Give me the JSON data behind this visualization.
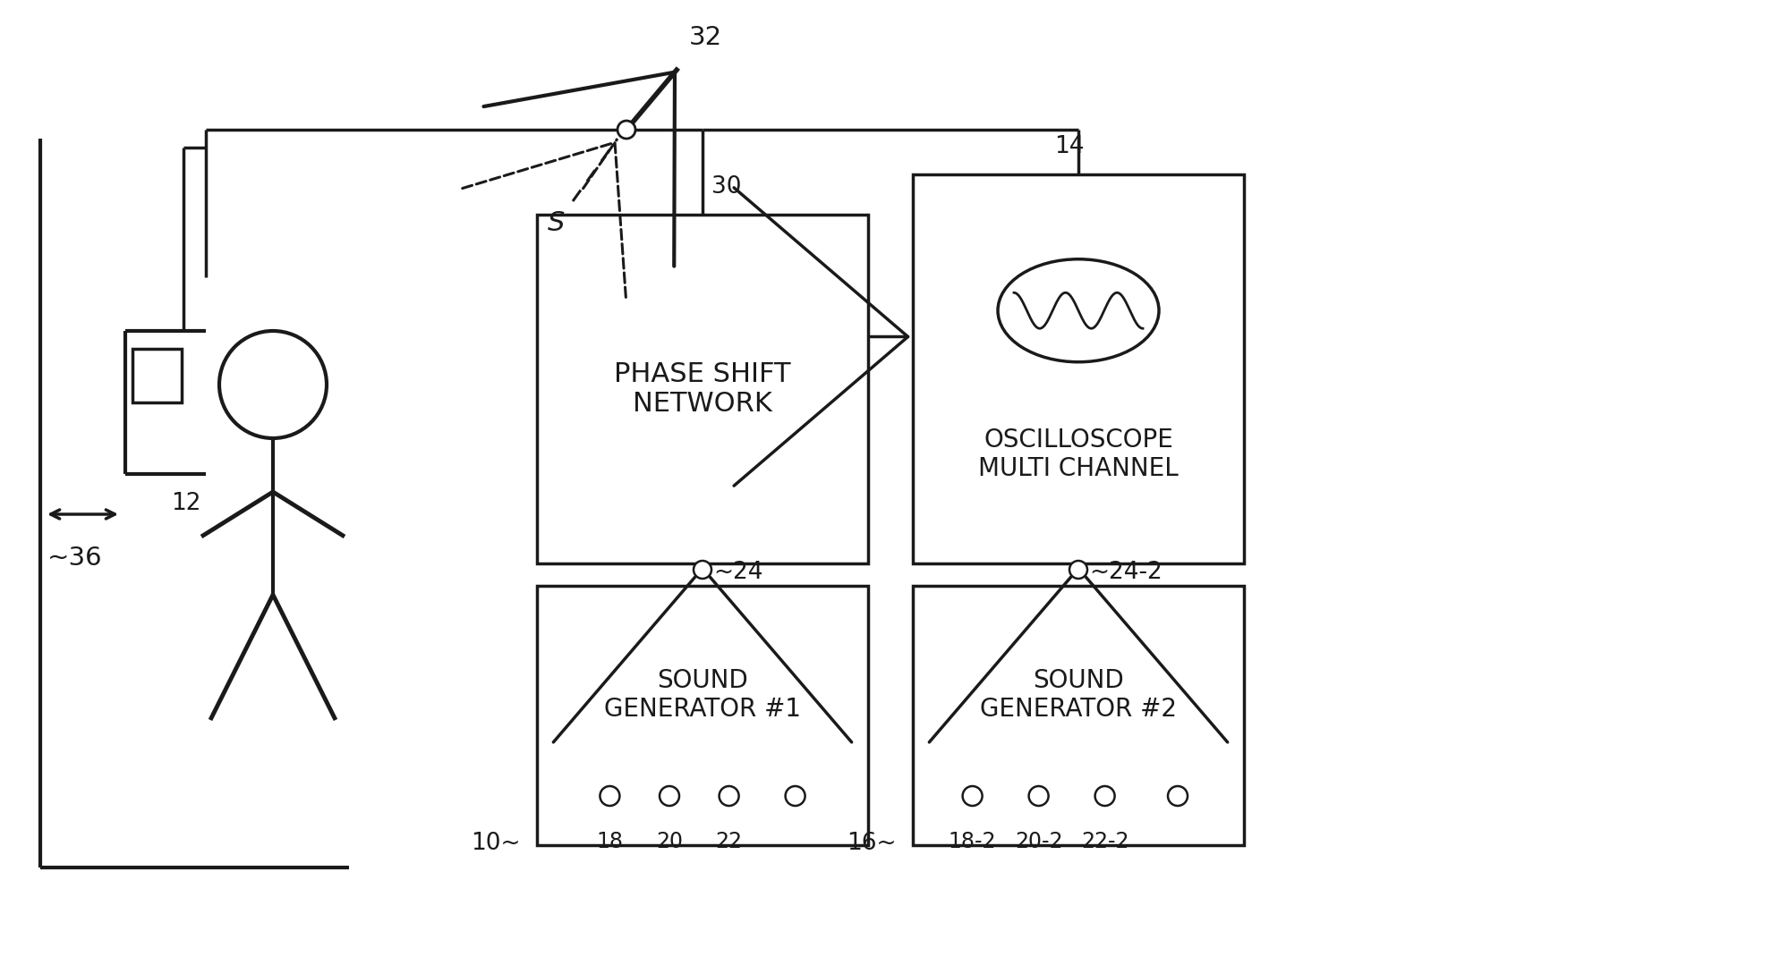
{
  "bg_color": "#ffffff",
  "line_color": "#1a1a1a",
  "label_phase_shift": "PHASE SHIFT\nNETWORK",
  "label_oscilloscope": "OSCILLOSCOPE\nMULTI CHANNEL",
  "label_sound_gen1": "SOUND\nGENERATOR #1",
  "label_sound_gen2": "SOUND\nGENERATOR #2",
  "ref_30": "30",
  "ref_14": "14",
  "ref_10": "10~",
  "ref_16": "16~",
  "ref_24": "~24",
  "ref_24_2": "~24-2",
  "ref_32": "32",
  "ref_36": "~36",
  "ref_12": "12",
  "ref_18": "18",
  "ref_20": "20",
  "ref_22": "22",
  "ref_18_2": "18-2",
  "ref_20_2": "20-2",
  "ref_22_2": "22-2",
  "label_s": "S"
}
